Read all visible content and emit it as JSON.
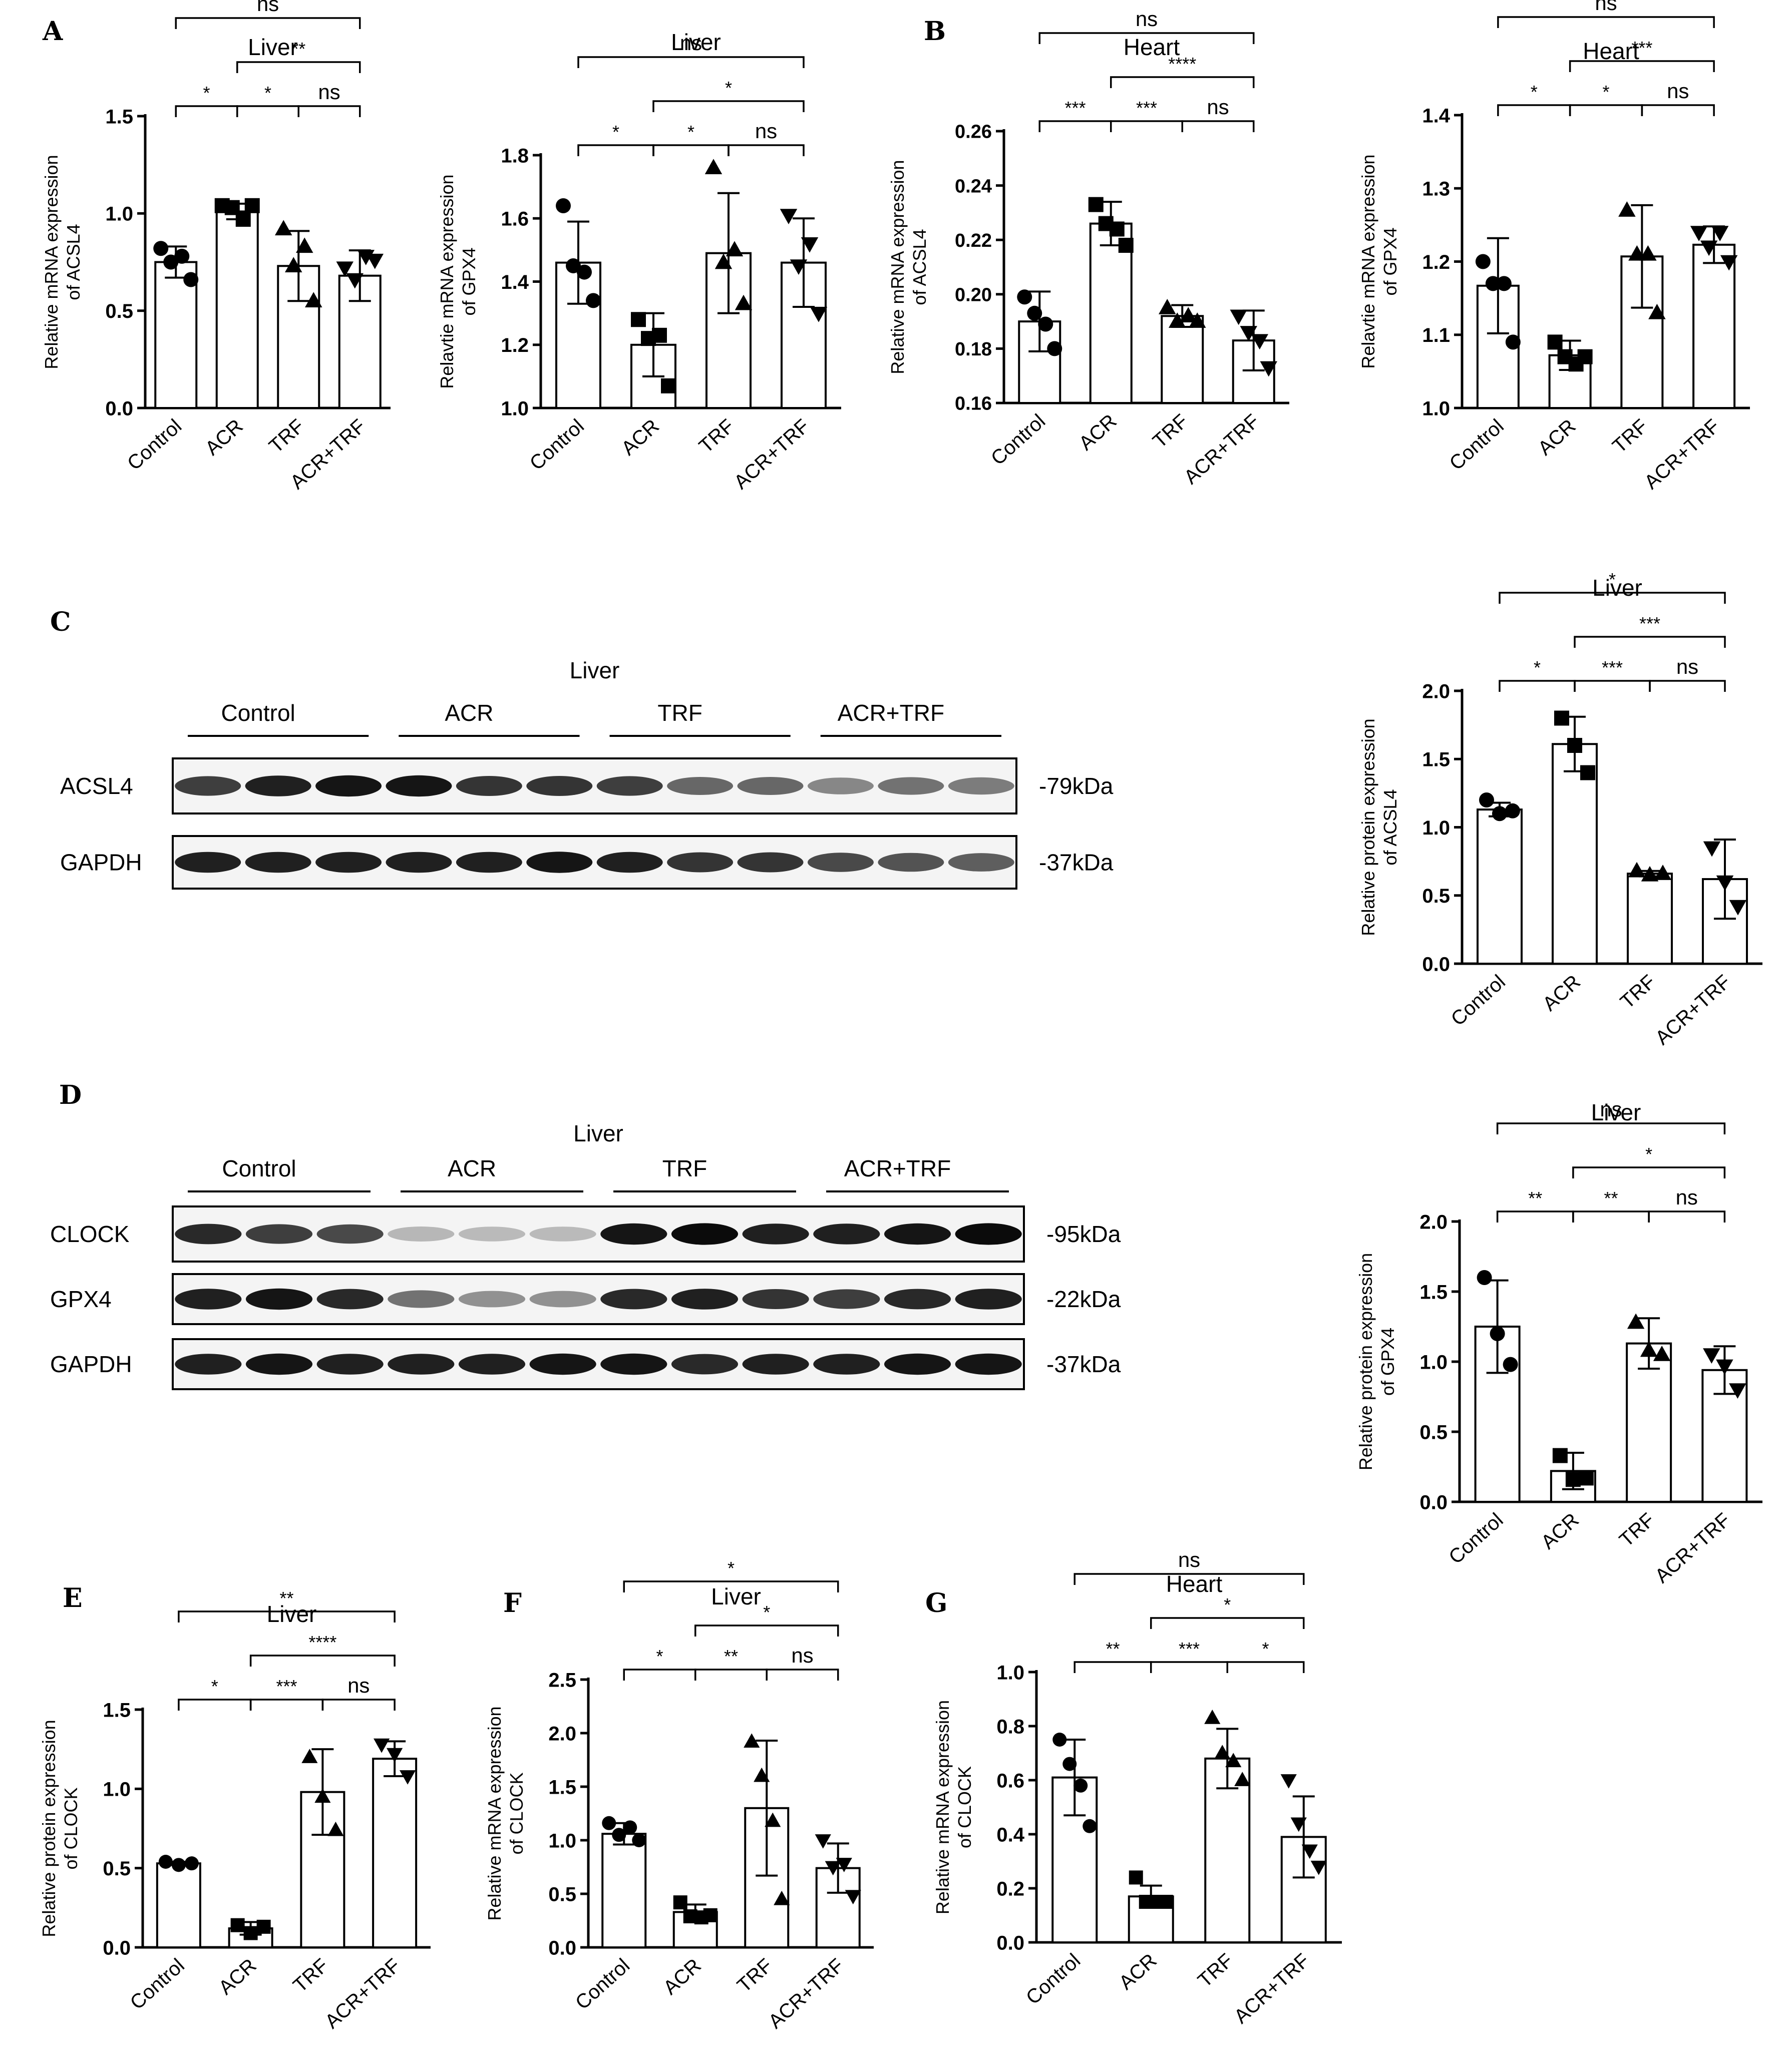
{
  "panel_labels": [
    "A",
    "B",
    "C",
    "D",
    "E",
    "F",
    "G"
  ],
  "blots": [
    {
      "panel": "C",
      "title": "Liver",
      "groups": [
        "Control",
        "ACR",
        "TRF",
        "ACR+TRF"
      ],
      "rows": [
        {
          "name": "ACSL4",
          "size": "-79kDa",
          "intensity": [
            0.7,
            0.85,
            0.9,
            0.9,
            0.75,
            0.75,
            0.7,
            0.5,
            0.5,
            0.35,
            0.45,
            0.4
          ]
        },
        {
          "name": "GAPDH",
          "size": "-37kDa",
          "intensity": [
            0.85,
            0.85,
            0.85,
            0.85,
            0.85,
            0.9,
            0.85,
            0.75,
            0.75,
            0.65,
            0.6,
            0.55
          ]
        }
      ]
    },
    {
      "panel": "D",
      "title": "Liver",
      "groups": [
        "Control",
        "ACR",
        "TRF",
        "ACR+TRF"
      ],
      "rows": [
        {
          "name": "CLOCK",
          "size": "-95kDa",
          "intensity": [
            0.8,
            0.7,
            0.65,
            0.12,
            0.1,
            0.1,
            0.9,
            0.95,
            0.85,
            0.85,
            0.9,
            0.95
          ]
        },
        {
          "name": "GPX4",
          "size": "-22kDa",
          "intensity": [
            0.85,
            0.9,
            0.8,
            0.45,
            0.3,
            0.3,
            0.8,
            0.85,
            0.75,
            0.7,
            0.8,
            0.85
          ]
        },
        {
          "name": "GAPDH",
          "size": "-37kDa",
          "intensity": [
            0.85,
            0.9,
            0.85,
            0.85,
            0.85,
            0.9,
            0.9,
            0.8,
            0.85,
            0.85,
            0.9,
            0.9
          ]
        }
      ]
    }
  ],
  "chart_data": [
    {
      "panel": "A",
      "type": "bar",
      "title": "Liver",
      "ylabel": [
        "Relative mRNA expression",
        "of ACSL4"
      ],
      "categories": [
        "Control",
        "ACR",
        "TRF",
        "ACR+TRF"
      ],
      "ylim": [
        0,
        1.5
      ],
      "yticks": [
        "0.0",
        "0.5",
        "1.0",
        "1.5"
      ],
      "values": [
        0.75,
        1.01,
        0.73,
        0.68
      ],
      "err": [
        0.08,
        0.04,
        0.18,
        0.13
      ],
      "points": [
        [
          0.82,
          0.75,
          0.78,
          0.66
        ],
        [
          1.04,
          1.03,
          0.97,
          1.04
        ],
        [
          0.92,
          0.73,
          0.83,
          0.55
        ],
        [
          0.72,
          0.66,
          0.78,
          0.76
        ]
      ],
      "brackets": [
        {
          "a": 0,
          "b": 1,
          "level": 0,
          "label": "*"
        },
        {
          "a": 1,
          "b": 2,
          "level": 0,
          "label": "*"
        },
        {
          "a": 2,
          "b": 3,
          "level": 0,
          "label": "ns"
        },
        {
          "a": 1,
          "b": 3,
          "level": 1,
          "label": "**"
        },
        {
          "a": 0,
          "b": 3,
          "level": 2,
          "label": "ns"
        }
      ]
    },
    {
      "panel": "A",
      "type": "bar",
      "title": "Liver",
      "ylabel": [
        "Relavtie mRNA expression",
        "of GPX4"
      ],
      "categories": [
        "Control",
        "ACR",
        "TRF",
        "ACR+TRF"
      ],
      "ylim": [
        1.0,
        1.8
      ],
      "yticks": [
        "1.0",
        "1.2",
        "1.4",
        "1.6",
        "1.8"
      ],
      "values": [
        1.46,
        1.2,
        1.49,
        1.46
      ],
      "err": [
        0.13,
        0.1,
        0.19,
        0.14
      ],
      "points": [
        [
          1.64,
          1.45,
          1.43,
          1.34
        ],
        [
          1.28,
          1.22,
          1.23,
          1.07
        ],
        [
          1.76,
          1.46,
          1.5,
          1.33
        ],
        [
          1.61,
          1.45,
          1.52,
          1.3
        ]
      ],
      "brackets": [
        {
          "a": 0,
          "b": 1,
          "level": 0,
          "label": "*"
        },
        {
          "a": 1,
          "b": 2,
          "level": 0,
          "label": "*"
        },
        {
          "a": 2,
          "b": 3,
          "level": 0,
          "label": "ns"
        },
        {
          "a": 1,
          "b": 3,
          "level": 1,
          "label": "*"
        },
        {
          "a": 0,
          "b": 3,
          "level": 2,
          "label": "ns"
        }
      ]
    },
    {
      "panel": "B",
      "type": "bar",
      "title": "Heart",
      "ylabel": [
        "Relative mRNA expression",
        "of ACSL4"
      ],
      "categories": [
        "Control",
        "ACR",
        "TRF",
        "ACR+TRF"
      ],
      "ylim": [
        0.16,
        0.26
      ],
      "yticks": [
        "0.16",
        "0.18",
        "0.20",
        "0.22",
        "0.24",
        "0.26"
      ],
      "values": [
        0.19,
        0.226,
        0.192,
        0.183
      ],
      "err": [
        0.011,
        0.008,
        0.004,
        0.011
      ],
      "points": [
        [
          0.199,
          0.193,
          0.189,
          0.18
        ],
        [
          0.233,
          0.226,
          0.224,
          0.218
        ],
        [
          0.195,
          0.19,
          0.192,
          0.19
        ],
        [
          0.192,
          0.186,
          0.183,
          0.173
        ]
      ],
      "brackets": [
        {
          "a": 0,
          "b": 1,
          "level": 0,
          "label": "***"
        },
        {
          "a": 1,
          "b": 2,
          "level": 0,
          "label": "***"
        },
        {
          "a": 2,
          "b": 3,
          "level": 0,
          "label": "ns"
        },
        {
          "a": 1,
          "b": 3,
          "level": 1,
          "label": "****"
        },
        {
          "a": 0,
          "b": 3,
          "level": 2,
          "label": "ns"
        }
      ]
    },
    {
      "panel": "B",
      "type": "bar",
      "title": "Heart",
      "ylabel": [
        "Relavtie mRNA expression",
        "of GPX4"
      ],
      "categories": [
        "Control",
        "ACR",
        "TRF",
        "ACR+TRF"
      ],
      "ylim": [
        1.0,
        1.4
      ],
      "yticks": [
        "1.0",
        "1.1",
        "1.2",
        "1.3",
        "1.4"
      ],
      "values": [
        1.167,
        1.072,
        1.207,
        1.223
      ],
      "err": [
        0.065,
        0.02,
        0.07,
        0.025
      ],
      "points": [
        [
          1.2,
          1.17,
          1.17,
          1.09
        ],
        [
          1.09,
          1.07,
          1.06,
          1.07
        ],
        [
          1.27,
          1.21,
          1.21,
          1.13
        ],
        [
          1.24,
          1.22,
          1.24,
          1.2
        ]
      ],
      "brackets": [
        {
          "a": 0,
          "b": 1,
          "level": 0,
          "label": "*"
        },
        {
          "a": 1,
          "b": 2,
          "level": 0,
          "label": "*"
        },
        {
          "a": 2,
          "b": 3,
          "level": 0,
          "label": "ns"
        },
        {
          "a": 1,
          "b": 3,
          "level": 1,
          "label": "***"
        },
        {
          "a": 0,
          "b": 3,
          "level": 2,
          "label": "ns"
        }
      ]
    },
    {
      "panel": "C",
      "type": "bar",
      "title": "Liver",
      "ylabel": [
        "Relative protein expression",
        "of ACSL4"
      ],
      "categories": [
        "Control",
        "ACR",
        "TRF",
        "ACR+TRF"
      ],
      "ylim": [
        0,
        2.0
      ],
      "yticks": [
        "0.0",
        "0.5",
        "1.0",
        "1.5",
        "2.0"
      ],
      "values": [
        1.13,
        1.61,
        0.66,
        0.62
      ],
      "err": [
        0.05,
        0.2,
        0.02,
        0.29
      ],
      "points": [
        [
          1.2,
          1.1,
          1.12
        ],
        [
          1.8,
          1.6,
          1.4
        ],
        [
          0.68,
          0.65,
          0.66
        ],
        [
          0.85,
          0.6,
          0.42
        ]
      ],
      "brackets": [
        {
          "a": 0,
          "b": 1,
          "level": 0,
          "label": "*"
        },
        {
          "a": 1,
          "b": 2,
          "level": 0,
          "label": "***"
        },
        {
          "a": 2,
          "b": 3,
          "level": 0,
          "label": "ns"
        },
        {
          "a": 1,
          "b": 3,
          "level": 1,
          "label": "***"
        },
        {
          "a": 0,
          "b": 3,
          "level": 2,
          "label": "*"
        }
      ]
    },
    {
      "panel": "D",
      "type": "bar",
      "title": "Liver",
      "ylabel": [
        "Relative protein expression",
        "of GPX4"
      ],
      "categories": [
        "Control",
        "ACR",
        "TRF",
        "ACR+TRF"
      ],
      "ylim": [
        0,
        2.0
      ],
      "yticks": [
        "0.0",
        "0.5",
        "1.0",
        "1.5",
        "2.0"
      ],
      "values": [
        1.25,
        0.22,
        1.13,
        0.94
      ],
      "err": [
        0.33,
        0.13,
        0.18,
        0.17
      ],
      "points": [
        [
          1.6,
          1.2,
          0.98
        ],
        [
          0.33,
          0.16,
          0.17
        ],
        [
          1.28,
          1.08,
          1.05
        ],
        [
          1.05,
          0.97,
          0.8
        ]
      ],
      "brackets": [
        {
          "a": 0,
          "b": 1,
          "level": 0,
          "label": "**"
        },
        {
          "a": 1,
          "b": 2,
          "level": 0,
          "label": "**"
        },
        {
          "a": 2,
          "b": 3,
          "level": 0,
          "label": "ns"
        },
        {
          "a": 1,
          "b": 3,
          "level": 1,
          "label": "*"
        },
        {
          "a": 0,
          "b": 3,
          "level": 2,
          "label": "ns"
        }
      ]
    },
    {
      "panel": "E",
      "type": "bar",
      "title": "Liver",
      "ylabel": [
        "Relative protein expression",
        "of CLOCK"
      ],
      "categories": [
        "Control",
        "ACR",
        "TRF",
        "ACR+TRF"
      ],
      "ylim": [
        0,
        1.5
      ],
      "yticks": [
        "0.0",
        "0.5",
        "1.0",
        "1.5"
      ],
      "values": [
        0.53,
        0.12,
        0.98,
        1.19
      ],
      "err": [
        0.01,
        0.04,
        0.27,
        0.11
      ],
      "points": [
        [
          0.54,
          0.52,
          0.53
        ],
        [
          0.14,
          0.09,
          0.13
        ],
        [
          1.2,
          0.95,
          0.74
        ],
        [
          1.28,
          1.22,
          1.08
        ]
      ],
      "brackets": [
        {
          "a": 0,
          "b": 1,
          "level": 0,
          "label": "*"
        },
        {
          "a": 1,
          "b": 2,
          "level": 0,
          "label": "***"
        },
        {
          "a": 2,
          "b": 3,
          "level": 0,
          "label": "ns"
        },
        {
          "a": 1,
          "b": 3,
          "level": 1,
          "label": "****"
        },
        {
          "a": 0,
          "b": 3,
          "level": 2,
          "label": "**"
        }
      ]
    },
    {
      "panel": "F",
      "type": "bar",
      "title": "Liver",
      "ylabel": [
        "Relative mRNA expression",
        "of CLOCK"
      ],
      "categories": [
        "Control",
        "ACR",
        "TRF",
        "ACR+TRF"
      ],
      "ylim": [
        0,
        2.5
      ],
      "yticks": [
        "0.0",
        "0.5",
        "1.0",
        "1.5",
        "2.0",
        "2.5"
      ],
      "values": [
        1.06,
        0.33,
        1.3,
        0.74
      ],
      "err": [
        0.1,
        0.07,
        0.63,
        0.23
      ],
      "points": [
        [
          1.16,
          1.05,
          1.12,
          1.0
        ],
        [
          0.42,
          0.29,
          0.28,
          0.3
        ],
        [
          1.92,
          1.6,
          1.18,
          0.45
        ],
        [
          1.0,
          0.75,
          0.78,
          0.48
        ]
      ],
      "brackets": [
        {
          "a": 0,
          "b": 1,
          "level": 0,
          "label": "*"
        },
        {
          "a": 1,
          "b": 2,
          "level": 0,
          "label": "**"
        },
        {
          "a": 2,
          "b": 3,
          "level": 0,
          "label": "ns"
        },
        {
          "a": 1,
          "b": 3,
          "level": 1,
          "label": "*"
        },
        {
          "a": 0,
          "b": 3,
          "level": 2,
          "label": "*"
        }
      ]
    },
    {
      "panel": "G",
      "type": "bar",
      "title": "Heart",
      "ylabel": [
        "Relative mRNA expression",
        "of CLOCK"
      ],
      "categories": [
        "Control",
        "ACR",
        "TRF",
        "ACR+TRF"
      ],
      "ylim": [
        0,
        1.0
      ],
      "yticks": [
        "0.0",
        "0.2",
        "0.4",
        "0.6",
        "0.8",
        "1.0"
      ],
      "values": [
        0.61,
        0.17,
        0.68,
        0.39
      ],
      "err": [
        0.14,
        0.04,
        0.11,
        0.15
      ],
      "points": [
        [
          0.75,
          0.66,
          0.58,
          0.43
        ],
        [
          0.24,
          0.15,
          0.15,
          0.15
        ],
        [
          0.83,
          0.7,
          0.67,
          0.6
        ],
        [
          0.6,
          0.44,
          0.34,
          0.28
        ]
      ],
      "brackets": [
        {
          "a": 0,
          "b": 1,
          "level": 0,
          "label": "**"
        },
        {
          "a": 1,
          "b": 2,
          "level": 0,
          "label": "***"
        },
        {
          "a": 2,
          "b": 3,
          "level": 0,
          "label": "*"
        },
        {
          "a": 1,
          "b": 3,
          "level": 1,
          "label": "*"
        },
        {
          "a": 0,
          "b": 3,
          "level": 2,
          "label": "ns"
        }
      ]
    }
  ]
}
